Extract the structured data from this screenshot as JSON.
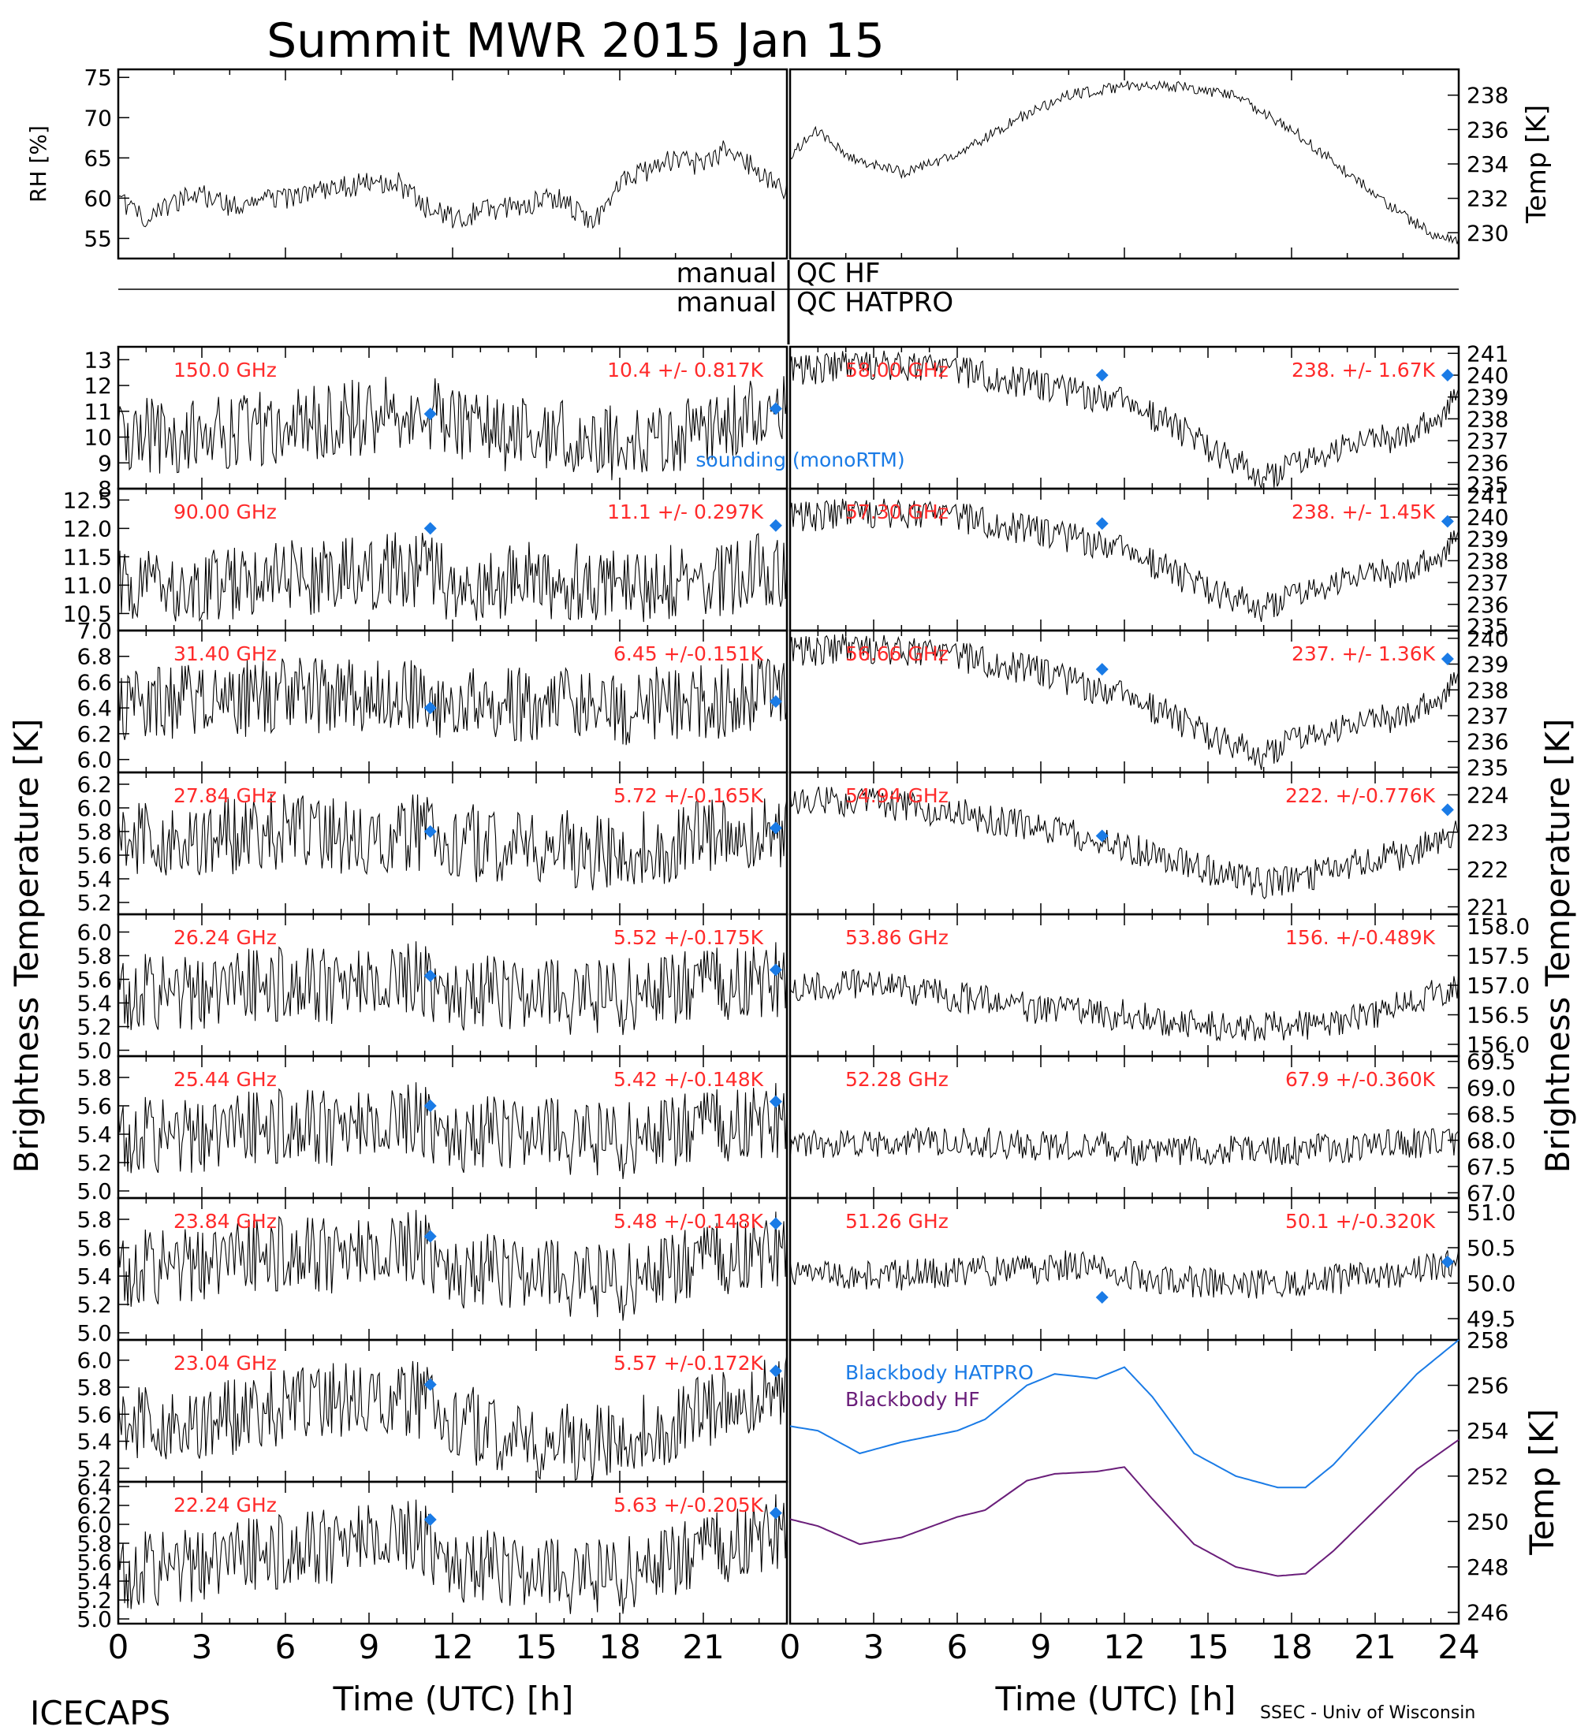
{
  "title": "Summit MWR 2015 Jan 15",
  "footer": {
    "left": "ICECAPS",
    "right": "SSEC - Univ of Wisconsin",
    "xlabel": "Time (UTC) [h]"
  },
  "manual_labels": {
    "hf_a": "manual",
    "hf_b": "QC HF",
    "hatpro_a": "manual",
    "hatpro_b": "QC HATPRO"
  },
  "ylabel_left": "Brightness Temperature [K]",
  "ylabel_right": "Brightness Temperature [K]",
  "sounding_label": "sounding (monoRTM)",
  "colors": {
    "trace": "#000000",
    "label": "#ff2a2a",
    "sounding": "#1a7be6",
    "bb_hatpro": "#1a7be6",
    "bb_hf": "#6a1e7a"
  },
  "chart_data": [
    {
      "type": "line",
      "id": "rh",
      "ylabel": "RH [%]",
      "ylim": [
        52.5,
        76
      ],
      "yticks": [
        55,
        60,
        65,
        70,
        75
      ],
      "xlim": [
        0,
        12
      ],
      "series": [
        {
          "x": [
            0,
            0.5,
            1,
            1.5,
            2,
            3,
            4,
            5,
            5.5,
            6,
            7,
            8,
            8.5,
            9,
            9.5,
            10,
            10.5,
            11,
            11.5,
            12
          ],
          "values": [
            60,
            57,
            59.5,
            60.5,
            59,
            60,
            61.5,
            62,
            59,
            57.5,
            59,
            60,
            56.5,
            62,
            63.5,
            65,
            64,
            66.5,
            63,
            61
          ]
        }
      ]
    },
    {
      "type": "line",
      "id": "temp",
      "ylabel": "Temp [K]",
      "ylim": [
        228.5,
        239.5
      ],
      "yticks": [
        230,
        232,
        234,
        236,
        238
      ],
      "xlim": [
        12,
        24
      ],
      "series": [
        {
          "x": [
            12,
            12.5,
            13,
            14,
            15,
            16,
            17,
            18,
            19,
            20,
            21,
            22,
            23,
            23.5,
            24
          ],
          "values": [
            234.5,
            236,
            234.5,
            233.5,
            234.5,
            236.5,
            238,
            238.5,
            238.5,
            238,
            236,
            233.5,
            231,
            230,
            229.5
          ]
        }
      ]
    },
    {
      "type": "line",
      "id": "hf_150",
      "label": "150.0 GHz",
      "stat": "10.4 +/- 0.817K",
      "ylim": [
        8,
        13.5
      ],
      "yticks": [
        8,
        9,
        10,
        11,
        12,
        13
      ],
      "xlim": [
        0,
        24
      ],
      "series": [
        {
          "x": [
            0,
            3,
            6,
            9,
            11,
            12,
            15,
            18,
            21,
            24
          ],
          "values": [
            10.2,
            10.0,
            10.5,
            10.8,
            11.2,
            10.3,
            10.0,
            9.7,
            10.3,
            11.0
          ]
        }
      ],
      "sounding": [
        {
          "x": 11.2,
          "y": 10.9
        },
        {
          "x": 23.6,
          "y": 11.1
        }
      ]
    },
    {
      "type": "line",
      "id": "hf_90",
      "label": "90.00 GHz",
      "stat": "11.1 +/- 0.297K",
      "ylim": [
        10.2,
        12.7
      ],
      "yticks": [
        10.5,
        11.0,
        11.5,
        12.0,
        12.5
      ],
      "xlim": [
        0,
        24
      ],
      "series": [
        {
          "x": [
            0,
            3,
            6,
            9,
            11,
            12,
            15,
            18,
            21,
            24
          ],
          "values": [
            11.0,
            11.0,
            11.1,
            11.2,
            11.3,
            11.0,
            11.1,
            11.0,
            11.1,
            11.3
          ]
        }
      ],
      "sounding": [
        {
          "x": 11.2,
          "y": 12.0
        },
        {
          "x": 23.6,
          "y": 12.05
        }
      ]
    },
    {
      "type": "line",
      "id": "hatpro_3140",
      "label": "31.40 GHz",
      "stat": "6.45 +/-0.151K",
      "ylim": [
        5.9,
        7.0
      ],
      "yticks": [
        6.0,
        6.2,
        6.4,
        6.6,
        6.8,
        7.0
      ],
      "xlim": [
        0,
        24
      ],
      "series": [
        {
          "x": [
            0,
            3,
            6,
            9,
            11,
            12,
            15,
            18,
            21,
            24
          ],
          "values": [
            6.4,
            6.45,
            6.5,
            6.5,
            6.55,
            6.4,
            6.45,
            6.4,
            6.45,
            6.5
          ]
        }
      ],
      "sounding": [
        {
          "x": 11.2,
          "y": 6.4
        },
        {
          "x": 23.6,
          "y": 6.45
        }
      ]
    },
    {
      "type": "line",
      "id": "hatpro_2784",
      "label": "27.84 GHz",
      "stat": "5.72 +/-0.165K",
      "ylim": [
        5.1,
        6.3
      ],
      "yticks": [
        5.2,
        5.4,
        5.6,
        5.8,
        6.0,
        6.2
      ],
      "xlim": [
        0,
        24
      ],
      "series": [
        {
          "x": [
            0,
            3,
            6,
            9,
            11,
            12,
            15,
            18,
            21,
            24
          ],
          "values": [
            5.7,
            5.75,
            5.8,
            5.75,
            5.8,
            5.7,
            5.7,
            5.6,
            5.75,
            5.8
          ]
        }
      ],
      "sounding": [
        {
          "x": 11.2,
          "y": 5.8
        },
        {
          "x": 23.6,
          "y": 5.83
        }
      ]
    },
    {
      "type": "line",
      "id": "hatpro_2624",
      "label": "26.24 GHz",
      "stat": "5.52 +/-0.175K",
      "ylim": [
        4.95,
        6.15
      ],
      "yticks": [
        5.0,
        5.2,
        5.4,
        5.6,
        5.8,
        6.0
      ],
      "xlim": [
        0,
        24
      ],
      "series": [
        {
          "x": [
            0,
            3,
            6,
            9,
            11,
            12,
            15,
            18,
            21,
            24
          ],
          "values": [
            5.5,
            5.5,
            5.55,
            5.55,
            5.6,
            5.5,
            5.45,
            5.45,
            5.55,
            5.6
          ]
        }
      ],
      "sounding": [
        {
          "x": 11.2,
          "y": 5.63
        },
        {
          "x": 23.6,
          "y": 5.68
        }
      ]
    },
    {
      "type": "line",
      "id": "hatpro_2544",
      "label": "25.44 GHz",
      "stat": "5.42 +/-0.148K",
      "ylim": [
        4.95,
        5.95
      ],
      "yticks": [
        5.0,
        5.2,
        5.4,
        5.6,
        5.8
      ],
      "xlim": [
        0,
        24
      ],
      "series": [
        {
          "x": [
            0,
            3,
            6,
            9,
            11,
            12,
            15,
            18,
            21,
            24
          ],
          "values": [
            5.4,
            5.4,
            5.45,
            5.45,
            5.5,
            5.4,
            5.4,
            5.35,
            5.45,
            5.5
          ]
        }
      ],
      "sounding": [
        {
          "x": 11.2,
          "y": 5.6
        },
        {
          "x": 23.6,
          "y": 5.63
        }
      ]
    },
    {
      "type": "line",
      "id": "hatpro_2384",
      "label": "23.84 GHz",
      "stat": "5.48 +/-0.148K",
      "ylim": [
        4.95,
        5.95
      ],
      "yticks": [
        5.0,
        5.2,
        5.4,
        5.6,
        5.8
      ],
      "xlim": [
        0,
        24
      ],
      "series": [
        {
          "x": [
            0,
            3,
            6,
            9,
            11,
            12,
            15,
            18,
            21,
            24
          ],
          "values": [
            5.45,
            5.5,
            5.55,
            5.55,
            5.6,
            5.45,
            5.4,
            5.35,
            5.5,
            5.6
          ]
        }
      ],
      "sounding": [
        {
          "x": 11.2,
          "y": 5.68
        },
        {
          "x": 23.6,
          "y": 5.77
        }
      ]
    },
    {
      "type": "line",
      "id": "hatpro_2304",
      "label": "23.04 GHz",
      "stat": "5.57 +/-0.172K",
      "ylim": [
        5.1,
        6.15
      ],
      "yticks": [
        5.2,
        5.4,
        5.6,
        5.8,
        6.0
      ],
      "xlim": [
        0,
        24
      ],
      "series": [
        {
          "x": [
            0,
            3,
            6,
            9,
            11,
            12,
            15,
            18,
            21,
            24
          ],
          "values": [
            5.5,
            5.55,
            5.65,
            5.75,
            5.7,
            5.55,
            5.4,
            5.4,
            5.6,
            5.8
          ]
        }
      ],
      "sounding": [
        {
          "x": 11.2,
          "y": 5.82
        },
        {
          "x": 23.6,
          "y": 5.92
        }
      ]
    },
    {
      "type": "line",
      "id": "hatpro_2224",
      "label": "22.24 GHz",
      "stat": "5.63 +/-0.205K",
      "ylim": [
        4.95,
        6.45
      ],
      "yticks": [
        5.0,
        5.2,
        5.4,
        5.6,
        5.8,
        6.0,
        6.2,
        6.4
      ],
      "xlim": [
        0,
        24
      ],
      "series": [
        {
          "x": [
            0,
            3,
            6,
            9,
            11,
            12,
            15,
            18,
            21,
            24
          ],
          "values": [
            5.5,
            5.6,
            5.7,
            5.85,
            5.85,
            5.6,
            5.45,
            5.45,
            5.7,
            5.95
          ]
        }
      ],
      "sounding": [
        {
          "x": 11.2,
          "y": 6.05
        },
        {
          "x": 23.6,
          "y": 6.12
        }
      ]
    },
    {
      "type": "line",
      "id": "hatpro_5800",
      "label": "58.00 GHz",
      "stat": "238. +/- 1.67K",
      "ylim": [
        234.8,
        241.3
      ],
      "yticks": [
        235,
        236,
        237,
        238,
        239,
        240,
        241
      ],
      "xlim": [
        0,
        24
      ],
      "series": [
        {
          "x": [
            0,
            3,
            6,
            9,
            11,
            12,
            14,
            16,
            17,
            18,
            20,
            22,
            24
          ],
          "values": [
            240.2,
            240.5,
            240.2,
            239.5,
            239,
            238.8,
            237.5,
            236,
            235.2,
            235.8,
            236.8,
            237.2,
            238.8
          ]
        }
      ],
      "sounding": [
        {
          "x": 11.2,
          "y": 240.0
        },
        {
          "x": 23.6,
          "y": 240.0
        }
      ]
    },
    {
      "type": "line",
      "id": "hatpro_5730",
      "label": "57.30 GHz",
      "stat": "238. +/- 1.45K",
      "ylim": [
        234.8,
        241.3
      ],
      "yticks": [
        235,
        236,
        237,
        238,
        239,
        240,
        241
      ],
      "xlim": [
        0,
        24
      ],
      "series": [
        {
          "x": [
            0,
            3,
            6,
            9,
            11,
            12,
            14,
            16,
            17,
            18,
            20,
            22,
            24
          ],
          "values": [
            240,
            240.2,
            240,
            239.3,
            238.8,
            238.5,
            237.3,
            236.2,
            235.8,
            236.3,
            237.2,
            237.5,
            238.8
          ]
        }
      ],
      "sounding": [
        {
          "x": 11.2,
          "y": 239.7
        },
        {
          "x": 23.6,
          "y": 239.8
        }
      ]
    },
    {
      "type": "line",
      "id": "hatpro_5666",
      "label": "56.66 GHz",
      "stat": "237. +/- 1.36K",
      "ylim": [
        234.8,
        240.3
      ],
      "yticks": [
        235,
        236,
        237,
        238,
        239,
        240
      ],
      "xlim": [
        0,
        24
      ],
      "series": [
        {
          "x": [
            0,
            3,
            6,
            9,
            11,
            12,
            14,
            16,
            17,
            18,
            20,
            22,
            24
          ],
          "values": [
            239.5,
            239.6,
            239.3,
            238.7,
            238,
            237.8,
            236.8,
            235.8,
            235.4,
            236,
            236.6,
            237,
            238.2
          ]
        }
      ],
      "sounding": [
        {
          "x": 11.2,
          "y": 238.8
        },
        {
          "x": 23.6,
          "y": 239.2
        }
      ]
    },
    {
      "type": "line",
      "id": "hatpro_5484",
      "label": "54.94 GHz",
      "stat": "222. +/-0.776K",
      "ylim": [
        220.8,
        224.6
      ],
      "yticks": [
        221,
        222,
        223,
        224
      ],
      "xlim": [
        0,
        24
      ],
      "series": [
        {
          "x": [
            0,
            3,
            6,
            9,
            11,
            12,
            14,
            16,
            17,
            18,
            20,
            22,
            24
          ],
          "values": [
            223.9,
            223.8,
            223.5,
            223.1,
            222.8,
            222.6,
            222.2,
            221.8,
            221.6,
            221.7,
            222.1,
            222.4,
            223.0
          ]
        }
      ],
      "sounding": [
        {
          "x": 11.2,
          "y": 222.9
        },
        {
          "x": 23.6,
          "y": 223.6
        }
      ]
    },
    {
      "type": "line",
      "id": "hatpro_5386",
      "label": "53.86 GHz",
      "stat": "156. +/-0.489K",
      "ylim": [
        155.8,
        158.2
      ],
      "yticks": [
        156.0,
        156.5,
        157.0,
        157.5,
        158.0
      ],
      "xlim": [
        0,
        24
      ],
      "series": [
        {
          "x": [
            0,
            3,
            6,
            9,
            11,
            12,
            15,
            18,
            21,
            24
          ],
          "values": [
            157.0,
            157.0,
            156.8,
            156.6,
            156.5,
            156.5,
            156.3,
            156.3,
            156.5,
            157.0
          ]
        }
      ],
      "sounding": []
    },
    {
      "type": "line",
      "id": "hatpro_5228",
      "label": "52.28 GHz",
      "stat": "67.9 +/-0.360K",
      "ylim": [
        66.9,
        69.6
      ],
      "yticks": [
        67.0,
        67.5,
        68.0,
        68.5,
        69.0,
        69.5
      ],
      "xlim": [
        0,
        24
      ],
      "series": [
        {
          "x": [
            0,
            3,
            6,
            9,
            11,
            12,
            15,
            18,
            21,
            24
          ],
          "values": [
            67.9,
            67.9,
            68.0,
            67.9,
            67.9,
            67.8,
            67.8,
            67.8,
            67.9,
            68.0
          ]
        }
      ],
      "sounding": []
    },
    {
      "type": "line",
      "id": "hatpro_5126",
      "label": "51.26 GHz",
      "stat": "50.1 +/-0.320K",
      "ylim": [
        49.2,
        51.2
      ],
      "yticks": [
        49.5,
        50.0,
        50.5,
        51.0
      ],
      "xlim": [
        0,
        24
      ],
      "series": [
        {
          "x": [
            0,
            3,
            6,
            9,
            11,
            12,
            15,
            18,
            21,
            24
          ],
          "values": [
            50.1,
            50.1,
            50.15,
            50.2,
            50.3,
            50.1,
            50.0,
            50.0,
            50.1,
            50.3
          ]
        }
      ],
      "sounding": [
        {
          "x": 11.2,
          "y": 49.8
        },
        {
          "x": 23.6,
          "y": 50.3
        }
      ]
    },
    {
      "type": "line",
      "id": "blackbody",
      "ylabel": "Temp [K]",
      "ylim": [
        245.5,
        258
      ],
      "yticks": [
        246,
        248,
        250,
        252,
        254,
        256,
        258
      ],
      "xlim": [
        0,
        24
      ],
      "series": [
        {
          "name": "Blackbody HATPRO",
          "x": [
            0,
            1,
            2.5,
            4,
            6,
            7,
            8.5,
            9.5,
            11,
            12,
            13,
            14.5,
            16,
            17.5,
            18.5,
            19.5,
            21,
            22.5,
            24
          ],
          "values": [
            254.2,
            254,
            253,
            253.5,
            254,
            254.5,
            256,
            256.5,
            256.3,
            256.8,
            255.5,
            253,
            252,
            251.5,
            251.5,
            252.5,
            254.5,
            256.5,
            258
          ]
        },
        {
          "name": "Blackbody HF",
          "x": [
            0,
            1,
            2.5,
            4,
            6,
            7,
            8.5,
            9.5,
            11,
            12,
            13,
            14.5,
            16,
            17.5,
            18.5,
            19.5,
            21,
            22.5,
            24
          ],
          "values": [
            250.1,
            249.8,
            249,
            249.3,
            250.2,
            250.5,
            251.8,
            252.1,
            252.2,
            252.4,
            251,
            249,
            248,
            247.6,
            247.7,
            248.7,
            250.5,
            252.3,
            253.6
          ]
        }
      ]
    }
  ]
}
